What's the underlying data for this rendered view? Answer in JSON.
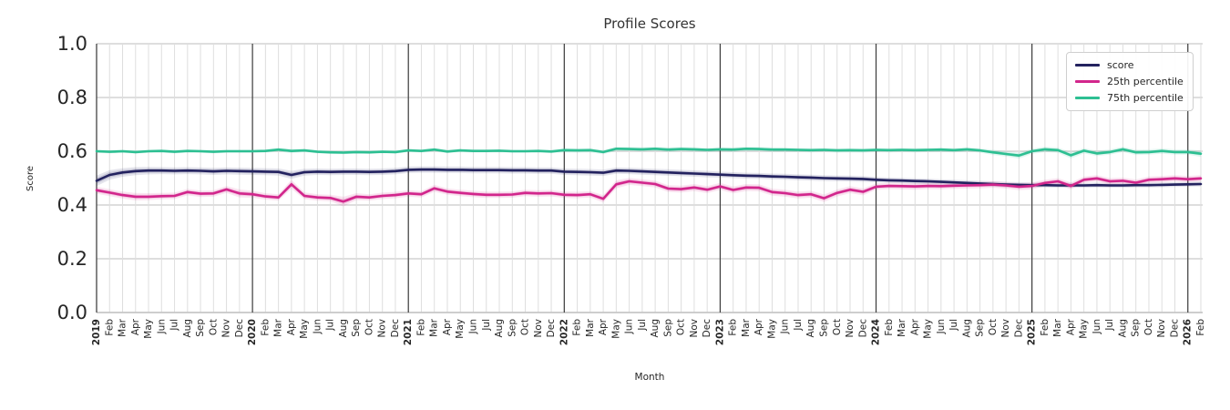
{
  "chart_data": {
    "type": "line",
    "title": "Profile Scores",
    "xlabel": "Month",
    "ylabel": "Score",
    "ylim": [
      0.0,
      1.0
    ],
    "yticks": [
      0.0,
      0.2,
      0.4,
      0.6,
      0.8,
      1.0
    ],
    "grid": true,
    "legend_position": "upper right",
    "x_labels": [
      "2019",
      "Feb",
      "Mar",
      "Apr",
      "May",
      "Jun",
      "Jul",
      "Aug",
      "Sep",
      "Oct",
      "Nov",
      "Dec",
      "2020",
      "Feb",
      "Mar",
      "Apr",
      "May",
      "Jun",
      "Jul",
      "Aug",
      "Sep",
      "Oct",
      "Nov",
      "Dec",
      "2021",
      "Feb",
      "Mar",
      "Apr",
      "May",
      "Jun",
      "Jul",
      "Aug",
      "Sep",
      "Oct",
      "Nov",
      "Dec",
      "2022",
      "Feb",
      "Mar",
      "Apr",
      "May",
      "Jun",
      "Jul",
      "Aug",
      "Sep",
      "Oct",
      "Nov",
      "Dec",
      "2023",
      "Feb",
      "Mar",
      "Apr",
      "May",
      "Jun",
      "Jul",
      "Aug",
      "Sep",
      "Oct",
      "Nov",
      "Dec",
      "2024",
      "Feb",
      "Mar",
      "Apr",
      "May",
      "Jun",
      "Jul",
      "Aug",
      "Sep",
      "Oct",
      "Nov",
      "Dec",
      "2025",
      "Feb",
      "Mar",
      "Apr",
      "May",
      "Jun",
      "Jul",
      "Aug",
      "Sep",
      "Oct",
      "Nov",
      "Dec",
      "2026",
      "Feb"
    ],
    "year_indices": [
      0,
      12,
      24,
      36,
      48,
      60,
      72,
      84
    ],
    "series": [
      {
        "name": "score",
        "color": "#23225f",
        "values": [
          0.49,
          0.512,
          0.521,
          0.526,
          0.528,
          0.528,
          0.527,
          0.528,
          0.527,
          0.525,
          0.527,
          0.526,
          0.525,
          0.524,
          0.523,
          0.512,
          0.522,
          0.524,
          0.523,
          0.524,
          0.524,
          0.523,
          0.524,
          0.526,
          0.531,
          0.532,
          0.532,
          0.531,
          0.531,
          0.53,
          0.53,
          0.53,
          0.529,
          0.529,
          0.528,
          0.528,
          0.524,
          0.523,
          0.522,
          0.52,
          0.528,
          0.527,
          0.525,
          0.523,
          0.521,
          0.519,
          0.517,
          0.515,
          0.513,
          0.511,
          0.509,
          0.508,
          0.506,
          0.505,
          0.503,
          0.502,
          0.5,
          0.499,
          0.498,
          0.497,
          0.494,
          0.492,
          0.491,
          0.489,
          0.488,
          0.486,
          0.484,
          0.482,
          0.48,
          0.478,
          0.476,
          0.475,
          0.474,
          0.474,
          0.473,
          0.473,
          0.473,
          0.474,
          0.473,
          0.473,
          0.474,
          0.474,
          0.475,
          0.476,
          0.477,
          0.478
        ],
        "band": [
          0.02,
          0.018,
          0.016,
          0.015,
          0.014,
          0.013,
          0.013,
          0.013,
          0.013,
          0.013,
          0.013,
          0.013,
          0.013,
          0.013,
          0.013,
          0.015,
          0.013,
          0.012,
          0.012,
          0.012,
          0.012,
          0.012,
          0.012,
          0.012,
          0.012,
          0.012,
          0.012,
          0.012,
          0.012,
          0.012,
          0.012,
          0.012,
          0.012,
          0.012,
          0.012,
          0.012,
          0.012,
          0.012,
          0.012,
          0.012,
          0.012,
          0.012,
          0.012,
          0.012,
          0.012,
          0.012,
          0.012,
          0.012,
          0.011,
          0.011,
          0.011,
          0.011,
          0.011,
          0.011,
          0.011,
          0.011,
          0.011,
          0.011,
          0.011,
          0.011,
          0.01,
          0.01,
          0.01,
          0.01,
          0.01,
          0.01,
          0.01,
          0.01,
          0.01,
          0.01,
          0.01,
          0.01,
          0.009,
          0.009,
          0.009,
          0.009,
          0.009,
          0.009,
          0.009,
          0.009,
          0.009,
          0.009,
          0.009,
          0.009,
          0.009,
          0.009
        ]
      },
      {
        "name": "25th percentile",
        "color": "#d2268c",
        "values": [
          0.455,
          0.446,
          0.437,
          0.431,
          0.431,
          0.433,
          0.434,
          0.448,
          0.442,
          0.443,
          0.458,
          0.443,
          0.44,
          0.432,
          0.428,
          0.477,
          0.434,
          0.428,
          0.426,
          0.413,
          0.431,
          0.428,
          0.434,
          0.437,
          0.443,
          0.44,
          0.462,
          0.45,
          0.445,
          0.441,
          0.438,
          0.438,
          0.439,
          0.445,
          0.443,
          0.444,
          0.438,
          0.437,
          0.44,
          0.423,
          0.477,
          0.488,
          0.483,
          0.478,
          0.461,
          0.459,
          0.465,
          0.457,
          0.469,
          0.456,
          0.465,
          0.464,
          0.448,
          0.444,
          0.437,
          0.44,
          0.425,
          0.445,
          0.457,
          0.449,
          0.468,
          0.471,
          0.47,
          0.469,
          0.471,
          0.47,
          0.472,
          0.473,
          0.474,
          0.476,
          0.473,
          0.468,
          0.471,
          0.482,
          0.488,
          0.471,
          0.494,
          0.499,
          0.488,
          0.49,
          0.483,
          0.494,
          0.496,
          0.499,
          0.496,
          0.499
        ],
        "band": [
          0.013,
          0.013,
          0.013,
          0.014,
          0.013,
          0.012,
          0.012,
          0.012,
          0.012,
          0.012,
          0.013,
          0.015,
          0.013,
          0.012,
          0.012,
          0.017,
          0.013,
          0.012,
          0.012,
          0.018,
          0.013,
          0.012,
          0.012,
          0.012,
          0.012,
          0.012,
          0.013,
          0.012,
          0.012,
          0.012,
          0.012,
          0.012,
          0.012,
          0.012,
          0.012,
          0.012,
          0.012,
          0.012,
          0.012,
          0.014,
          0.015,
          0.013,
          0.013,
          0.013,
          0.013,
          0.013,
          0.013,
          0.013,
          0.013,
          0.013,
          0.013,
          0.013,
          0.013,
          0.013,
          0.013,
          0.013,
          0.014,
          0.013,
          0.013,
          0.013,
          0.012,
          0.012,
          0.012,
          0.012,
          0.012,
          0.012,
          0.012,
          0.012,
          0.012,
          0.012,
          0.012,
          0.013,
          0.013,
          0.012,
          0.012,
          0.013,
          0.012,
          0.012,
          0.012,
          0.012,
          0.012,
          0.012,
          0.012,
          0.012,
          0.012,
          0.012
        ]
      },
      {
        "name": "75th percentile",
        "color": "#2dbf92",
        "values": [
          0.6,
          0.598,
          0.6,
          0.597,
          0.6,
          0.601,
          0.598,
          0.601,
          0.6,
          0.598,
          0.6,
          0.6,
          0.6,
          0.601,
          0.606,
          0.601,
          0.603,
          0.598,
          0.596,
          0.595,
          0.597,
          0.596,
          0.598,
          0.597,
          0.603,
          0.601,
          0.606,
          0.599,
          0.603,
          0.601,
          0.601,
          0.602,
          0.6,
          0.6,
          0.601,
          0.599,
          0.604,
          0.603,
          0.604,
          0.597,
          0.609,
          0.608,
          0.607,
          0.609,
          0.606,
          0.608,
          0.607,
          0.605,
          0.607,
          0.606,
          0.609,
          0.608,
          0.606,
          0.606,
          0.605,
          0.604,
          0.605,
          0.603,
          0.604,
          0.603,
          0.605,
          0.604,
          0.605,
          0.604,
          0.605,
          0.606,
          0.604,
          0.607,
          0.603,
          0.596,
          0.59,
          0.584,
          0.6,
          0.607,
          0.604,
          0.585,
          0.602,
          0.592,
          0.597,
          0.607,
          0.596,
          0.597,
          0.601,
          0.597,
          0.597,
          0.591
        ],
        "band": [
          0.006,
          0.006,
          0.006,
          0.006,
          0.006,
          0.006,
          0.006,
          0.006,
          0.006,
          0.006,
          0.006,
          0.006,
          0.006,
          0.006,
          0.007,
          0.008,
          0.006,
          0.006,
          0.006,
          0.006,
          0.006,
          0.006,
          0.006,
          0.006,
          0.006,
          0.006,
          0.006,
          0.006,
          0.006,
          0.006,
          0.006,
          0.006,
          0.006,
          0.006,
          0.006,
          0.006,
          0.008,
          0.008,
          0.008,
          0.008,
          0.008,
          0.008,
          0.008,
          0.008,
          0.008,
          0.008,
          0.008,
          0.008,
          0.008,
          0.008,
          0.008,
          0.008,
          0.008,
          0.008,
          0.008,
          0.008,
          0.008,
          0.008,
          0.008,
          0.008,
          0.008,
          0.008,
          0.008,
          0.008,
          0.008,
          0.008,
          0.008,
          0.008,
          0.008,
          0.01,
          0.01,
          0.012,
          0.01,
          0.01,
          0.01,
          0.012,
          0.01,
          0.01,
          0.01,
          0.01,
          0.01,
          0.01,
          0.01,
          0.01,
          0.01,
          0.012
        ]
      }
    ],
    "colors": {
      "grid_horizontal": "#c9c9c9",
      "grid_vertical": "#dedede",
      "year_line": "#3c3c3c",
      "spine": "#c2c2c2",
      "tick_text": "#262626",
      "title_text": "#333333"
    }
  }
}
